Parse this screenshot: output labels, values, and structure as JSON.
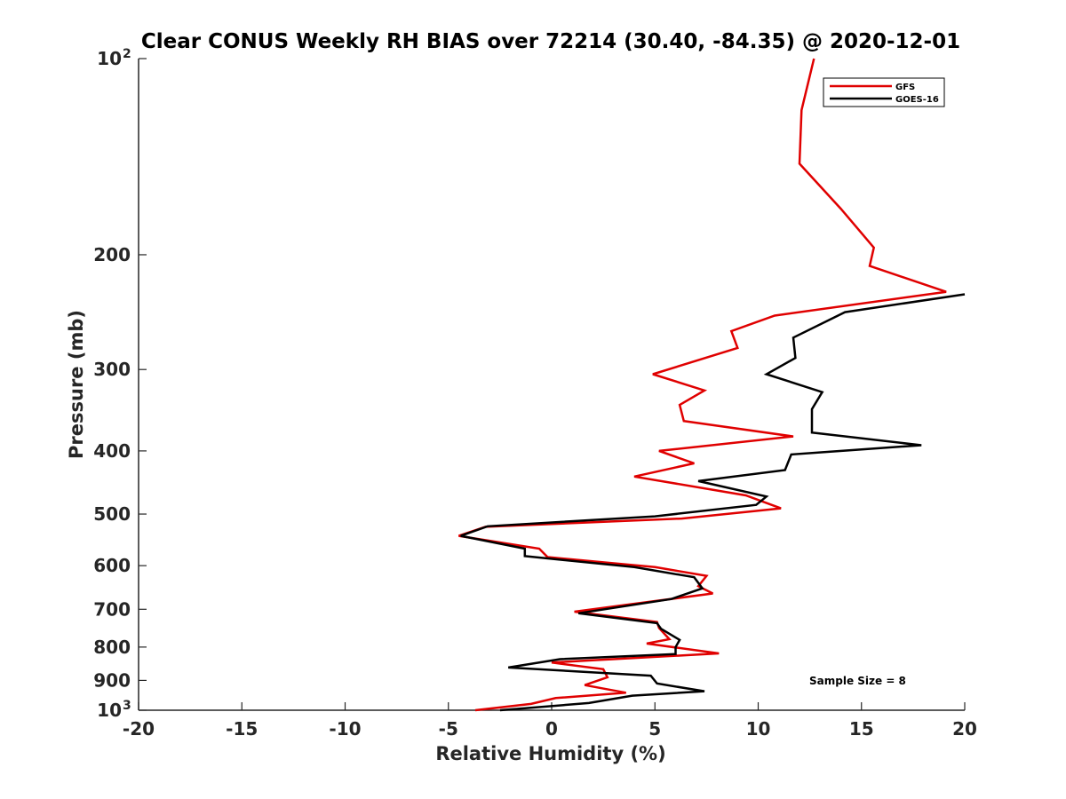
{
  "chart_data": {
    "type": "line",
    "title": "Clear CONUS Weekly RH BIAS over 72214 (30.40, -84.35) @ 2020-12-01",
    "xlabel": "Relative Humidity (%)",
    "ylabel": "Pressure (mb)",
    "xlim": [
      -20,
      20
    ],
    "ylim": [
      100,
      1000
    ],
    "yscale": "log",
    "y_reversed": true,
    "grid": false,
    "x_ticks": [
      -20,
      -15,
      -10,
      -5,
      0,
      5,
      10,
      15,
      20
    ],
    "x_tick_labels": [
      "-20",
      "-15",
      "-10",
      "-5",
      "0",
      "5",
      "10",
      "15",
      "20"
    ],
    "y_ticks": [
      100,
      200,
      300,
      400,
      500,
      600,
      700,
      800,
      900,
      1000
    ],
    "y_tick_labels": [
      {
        "base": "10",
        "exp": "2"
      },
      {
        "base": "200",
        "exp": ""
      },
      {
        "base": "300",
        "exp": ""
      },
      {
        "base": "400",
        "exp": ""
      },
      {
        "base": "500",
        "exp": ""
      },
      {
        "base": "600",
        "exp": ""
      },
      {
        "base": "700",
        "exp": ""
      },
      {
        "base": "800",
        "exp": ""
      },
      {
        "base": "900",
        "exp": ""
      },
      {
        "base": "10",
        "exp": "3"
      }
    ],
    "legend_position": "top-right",
    "series": [
      {
        "name": "GFS",
        "color": "#e00000",
        "x": [
          12.7,
          12.1,
          12.0,
          14.0,
          15.6,
          15.4,
          19.1,
          10.8,
          8.7,
          9.0,
          4.9,
          7.4,
          6.2,
          6.4,
          11.7,
          5.2,
          6.9,
          4.0,
          9.4,
          11.1,
          6.3,
          -3.2,
          -4.5,
          -0.6,
          -0.2,
          5.0,
          7.5,
          7.1,
          7.8,
          1.1,
          5.1,
          5.2,
          5.7,
          4.6,
          8.1,
          0.0,
          2.5,
          2.7,
          1.6,
          3.6,
          0.2,
          -1.0,
          -3.7
        ],
        "y": [
          100,
          120,
          145,
          170,
          195,
          208,
          228,
          248,
          262,
          278,
          305,
          323,
          340,
          360,
          380,
          400,
          418,
          438,
          468,
          490,
          508,
          523,
          540,
          565,
          582,
          603,
          622,
          645,
          662,
          706,
          732,
          748,
          778,
          790,
          818,
          845,
          865,
          890,
          915,
          940,
          958,
          978,
          1000
        ]
      },
      {
        "name": "GOES-16",
        "color": "#000000",
        "x": [
          20.0,
          14.2,
          11.7,
          11.8,
          10.4,
          13.1,
          12.6,
          12.6,
          17.9,
          11.6,
          11.3,
          7.1,
          10.4,
          9.9,
          5.0,
          -3.1,
          -4.4,
          -1.3,
          -1.3,
          4.0,
          6.9,
          7.3,
          5.8,
          1.3,
          5.1,
          5.3,
          6.2,
          6.0,
          6.0,
          0.4,
          -2.1,
          4.8,
          5.1,
          7.4,
          3.9,
          1.8,
          -2.5
        ],
        "y": [
          230,
          245,
          268,
          288,
          305,
          325,
          345,
          375,
          392,
          405,
          428,
          445,
          470,
          484,
          504,
          522,
          540,
          565,
          580,
          603,
          625,
          650,
          675,
          710,
          735,
          750,
          780,
          800,
          820,
          835,
          860,
          885,
          910,
          935,
          950,
          975,
          1000
        ]
      }
    ],
    "annotation": "Sample Size = 8"
  }
}
